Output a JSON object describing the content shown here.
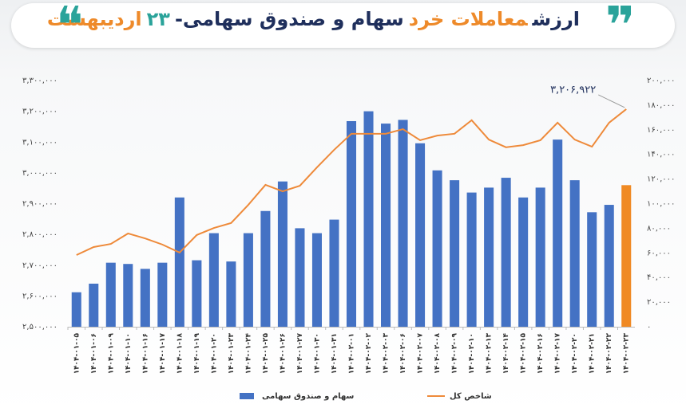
{
  "chart_data": {
    "type": "bar-line",
    "title_parts": [
      {
        "text": "ارزش",
        "color": "#1f2f5c"
      },
      {
        "text": "معاملات خرد",
        "color": "#ee8a2a"
      },
      {
        "text": "سهام و صندوق سهامی-",
        "color": "#1f2f5c"
      },
      {
        "text": "۲۳",
        "color": "#2aa39a"
      },
      {
        "text": "اردیبهشت",
        "color": "#ee8a2a"
      }
    ],
    "categories": [
      "۱۴۰۴-۰۱-۰۵",
      "۱۴۰۴-۰۱-۰۶",
      "۱۴۰۴-۰۱-۰۹",
      "۱۴۰۴-۰۱-۱۰",
      "۱۴۰۴-۰۱-۱۶",
      "۱۴۰۴-۰۱-۱۷",
      "۱۴۰۴-۰۱-۱۸",
      "۱۴۰۴-۰۱-۱۹",
      "۱۴۰۴-۰۱-۲۰",
      "۱۴۰۴-۰۱-۲۳",
      "۱۴۰۴-۰۱-۲۴",
      "۱۴۰۴-۰۱-۲۵",
      "۱۴۰۴-۰۱-۲۶",
      "۱۴۰۴-۰۱-۲۷",
      "۱۴۰۴-۰۱-۳۰",
      "۱۴۰۴-۰۱-۳۱",
      "۱۴۰۴-۰۲-۰۱",
      "۱۴۰۴-۰۲-۰۲",
      "۱۴۰۴-۰۲-۰۳",
      "۱۴۰۴-۰۲-۰۶",
      "۱۴۰۴-۰۲-۰۷",
      "۱۴۰۴-۰۲-۰۸",
      "۱۴۰۴-۰۲-۰۹",
      "۱۴۰۴-۰۲-۱۰",
      "۱۴۰۴-۰۲-۱۳",
      "۱۴۰۴-۰۲-۱۴",
      "۱۴۰۴-۰۲-۱۵",
      "۱۴۰۴-۰۲-۱۶",
      "۱۴۰۴-۰۲-۱۷",
      "۱۴۰۴-۰۲-۲۰",
      "۱۴۰۴-۰۲-۲۱",
      "۱۴۰۴-۰۲-۲۲",
      "۱۴۰۴-۰۲-۲۳"
    ],
    "series": [
      {
        "name": "سهام و صندوق سهامی",
        "type": "bar",
        "axis": "y2",
        "color": "#4472c4",
        "colors": [
          "#4472c4",
          "#4472c4",
          "#4472c4",
          "#4472c4",
          "#4472c4",
          "#4472c4",
          "#4472c4",
          "#4472c4",
          "#4472c4",
          "#4472c4",
          "#4472c4",
          "#4472c4",
          "#4472c4",
          "#4472c4",
          "#4472c4",
          "#4472c4",
          "#4472c4",
          "#4472c4",
          "#4472c4",
          "#4472c4",
          "#4472c4",
          "#4472c4",
          "#4472c4",
          "#4472c4",
          "#4472c4",
          "#4472c4",
          "#4472c4",
          "#4472c4",
          "#4472c4",
          "#4472c4",
          "#4472c4",
          "#4472c4",
          "#f08a24"
        ],
        "values": [
          28000,
          35000,
          52000,
          51000,
          47000,
          52000,
          105000,
          54000,
          76000,
          53000,
          76000,
          94000,
          118000,
          80000,
          76000,
          87000,
          167000,
          175000,
          165000,
          168000,
          149000,
          127000,
          119000,
          109000,
          113000,
          121000,
          105000,
          113000,
          152000,
          119000,
          93000,
          99000,
          115000
        ]
      },
      {
        "name": "شاخص کل",
        "type": "line",
        "axis": "y",
        "color": "#ee8a3a",
        "values": [
          2733000,
          2759000,
          2769000,
          2803000,
          2787000,
          2767000,
          2741000,
          2798000,
          2821000,
          2837000,
          2896000,
          2961000,
          2940000,
          2958000,
          3018000,
          3075000,
          3127000,
          3127000,
          3127000,
          3142000,
          3106000,
          3121000,
          3127000,
          3171000,
          3108000,
          3083000,
          3090000,
          3106000,
          3163000,
          3108000,
          3085000,
          3163000,
          3206922
        ],
        "value_labels": [
          null,
          null,
          null,
          null,
          null,
          null,
          null,
          null,
          null,
          null,
          null,
          null,
          null,
          null,
          null,
          null,
          null,
          null,
          null,
          null,
          null,
          null,
          null,
          null,
          null,
          null,
          null,
          null,
          null,
          null,
          null,
          null,
          "۳,۲۰۶,۹۲۲"
        ]
      }
    ],
    "ylim": [
      2500000,
      3300000
    ],
    "yticks": [
      {
        "value": 2500000,
        "label": "۲,۵۰۰,۰۰۰"
      },
      {
        "value": 2600000,
        "label": "۲,۶۰۰,۰۰۰"
      },
      {
        "value": 2700000,
        "label": "۲,۷۰۰,۰۰۰"
      },
      {
        "value": 2800000,
        "label": "۲,۸۰۰,۰۰۰"
      },
      {
        "value": 2900000,
        "label": "۲,۹۰۰,۰۰۰"
      },
      {
        "value": 3000000,
        "label": "۳,۰۰۰,۰۰۰"
      },
      {
        "value": 3100000,
        "label": "۳,۱۰۰,۰۰۰"
      },
      {
        "value": 3200000,
        "label": "۳,۲۰۰,۰۰۰"
      },
      {
        "value": 3300000,
        "label": "۳,۳۰۰,۰۰۰"
      }
    ],
    "y2lim": [
      0,
      200000
    ],
    "y2ticks": [
      {
        "value": 0,
        "label": "۰"
      },
      {
        "value": 20000,
        "label": "۲۰,۰۰۰"
      },
      {
        "value": 40000,
        "label": "۴۰,۰۰۰"
      },
      {
        "value": 60000,
        "label": "۶۰,۰۰۰"
      },
      {
        "value": 80000,
        "label": "۸۰,۰۰۰"
      },
      {
        "value": 100000,
        "label": "۱۰۰,۰۰۰"
      },
      {
        "value": 120000,
        "label": "۱۲۰,۰۰۰"
      },
      {
        "value": 140000,
        "label": "۱۴۰,۰۰۰"
      },
      {
        "value": 160000,
        "label": "۱۶۰,۰۰۰"
      },
      {
        "value": 180000,
        "label": "۱۸۰,۰۰۰"
      },
      {
        "value": 200000,
        "label": "۲۰۰,۰۰۰"
      }
    ],
    "grid": false
  }
}
